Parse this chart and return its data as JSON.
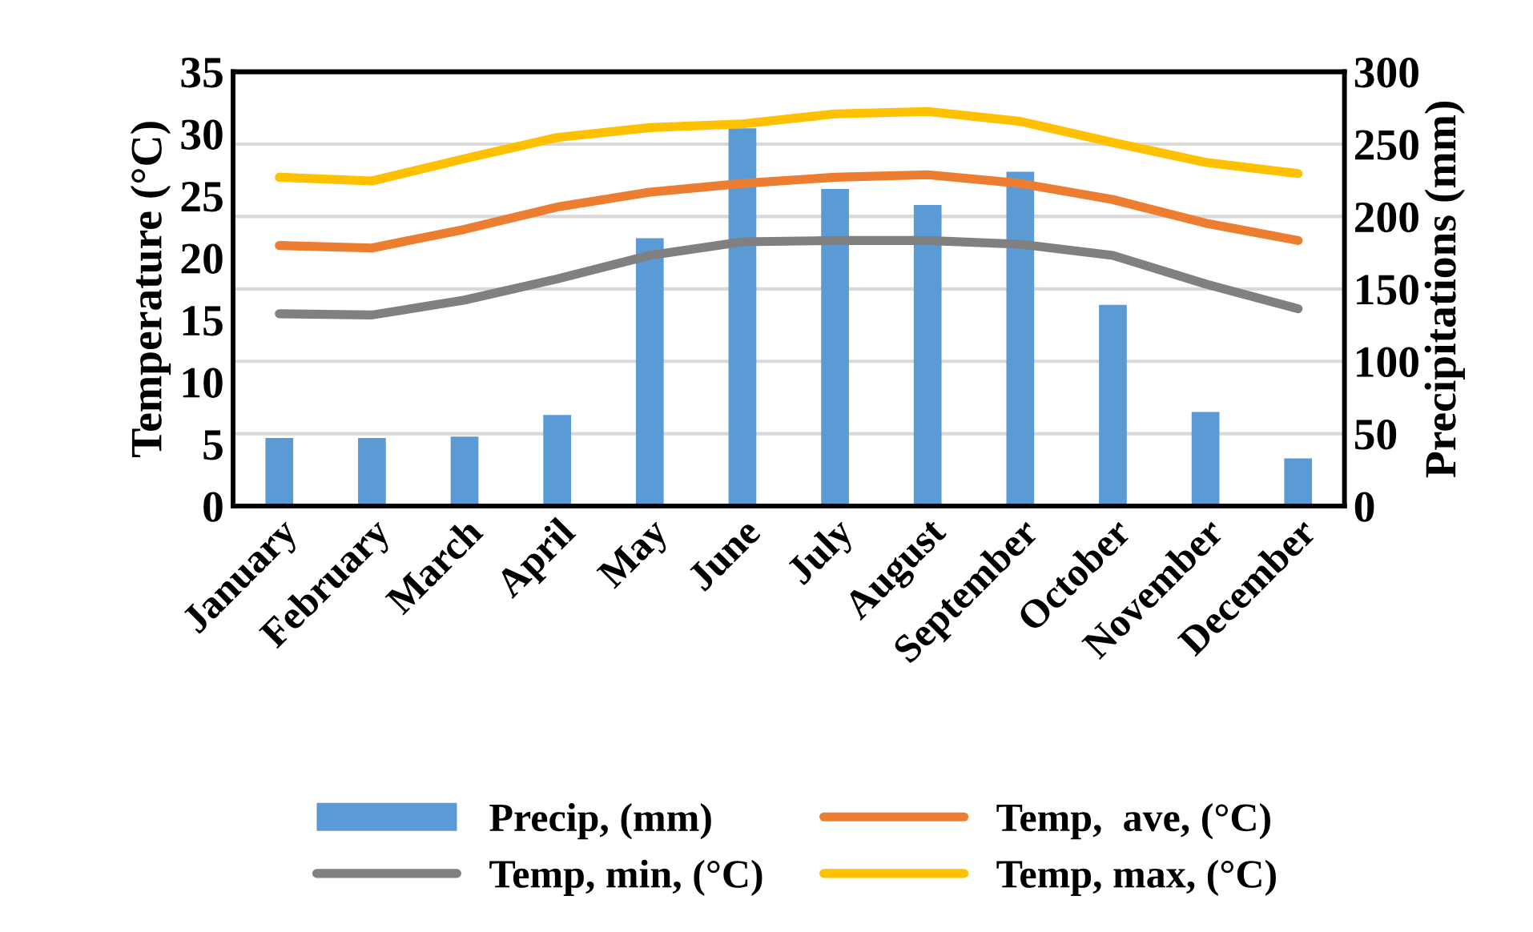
{
  "chart_data": {
    "type": "line",
    "categories": [
      "January",
      "February",
      "March",
      "April",
      "May",
      "June",
      "July",
      "August",
      "September",
      "October",
      "November",
      "December"
    ],
    "ylabel": "Temperature (°C)",
    "y2label": "Precipitations (mm)",
    "ylim": [
      0,
      35
    ],
    "yticks": [
      0,
      5,
      10,
      15,
      20,
      25,
      30,
      35
    ],
    "y2lim": [
      0,
      300
    ],
    "y2ticks": [
      0,
      50,
      100,
      150,
      200,
      250,
      300
    ],
    "grid": "y",
    "legend": "bottom",
    "marker": "none",
    "line_style": "solid",
    "series": [
      {
        "name": "Precip, (mm)",
        "type": "bar",
        "axis": "y2",
        "color": "#5b9bd5",
        "values": [
          47,
          47,
          48,
          63,
          185,
          261,
          219,
          208,
          231,
          139,
          65,
          33
        ]
      },
      {
        "name": "Temp,  ave, (°C)",
        "color": "#ed7d31",
        "values": [
          21.0,
          20.8,
          22.3,
          24.1,
          25.3,
          26.0,
          26.5,
          26.7,
          26.0,
          24.7,
          22.8,
          21.4
        ]
      },
      {
        "name": "Temp, min, (°C)",
        "color": "#808080",
        "values": [
          15.5,
          15.4,
          16.6,
          18.3,
          20.2,
          21.3,
          21.4,
          21.4,
          21.1,
          20.2,
          17.9,
          15.9
        ]
      },
      {
        "name": "Temp, max, (°C)",
        "color": "#ffc000",
        "values": [
          26.5,
          26.2,
          28.0,
          29.7,
          30.5,
          30.8,
          31.6,
          31.8,
          31.0,
          29.3,
          27.7,
          26.8
        ]
      }
    ]
  }
}
